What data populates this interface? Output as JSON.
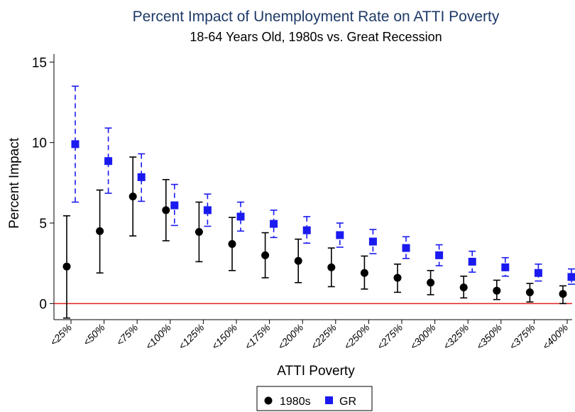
{
  "chart_data": {
    "type": "scatter",
    "title": "Percent Impact of Unemployment Rate on ATTI Poverty",
    "subtitle": "18-64 Years Old, 1980s vs. Great Recession",
    "xlabel": "ATTI Poverty",
    "ylabel": "Percent Impact",
    "categories": [
      "<25%",
      "<50%",
      "<75%",
      "<100%",
      "<125%",
      "<150%",
      "<175%",
      "<200%",
      "<225%",
      "<250%",
      "<275%",
      "<300%",
      "<325%",
      "<350%",
      "<375%",
      "<400%"
    ],
    "ylim": [
      -1,
      15.5
    ],
    "yticks": [
      0,
      5,
      10,
      15
    ],
    "reference_line": {
      "y": 0,
      "color": "#e32020"
    },
    "grid": false,
    "legend_position": "bottom-center",
    "series": [
      {
        "name": "1980s",
        "marker": "circle",
        "color": "#000000",
        "line_style": "solid",
        "values": [
          2.3,
          4.5,
          6.65,
          5.8,
          4.45,
          3.7,
          3.0,
          2.65,
          2.25,
          1.9,
          1.6,
          1.3,
          1.0,
          0.8,
          0.7,
          0.6
        ],
        "ci_low": [
          -0.9,
          1.9,
          4.2,
          3.9,
          2.6,
          2.05,
          1.6,
          1.3,
          1.05,
          0.9,
          0.7,
          0.55,
          0.35,
          0.25,
          0.1,
          0.0
        ],
        "ci_high": [
          5.45,
          7.05,
          9.1,
          7.7,
          6.3,
          5.35,
          4.4,
          4.0,
          3.45,
          2.95,
          2.45,
          2.05,
          1.7,
          1.45,
          1.25,
          1.1
        ]
      },
      {
        "name": "GR",
        "marker": "square",
        "color": "#1a1af0",
        "line_style": "dashed",
        "values": [
          9.9,
          8.85,
          7.85,
          6.1,
          5.8,
          5.4,
          4.95,
          4.55,
          4.25,
          3.85,
          3.45,
          3.0,
          2.6,
          2.25,
          1.9,
          1.65
        ],
        "ci_low": [
          6.3,
          6.85,
          6.35,
          4.85,
          4.8,
          4.5,
          4.1,
          3.75,
          3.5,
          3.1,
          2.8,
          2.35,
          1.95,
          1.7,
          1.4,
          1.2
        ],
        "ci_high": [
          13.5,
          10.9,
          9.3,
          7.4,
          6.8,
          6.3,
          5.8,
          5.4,
          5.0,
          4.6,
          4.15,
          3.65,
          3.25,
          2.85,
          2.45,
          2.15
        ]
      }
    ]
  }
}
